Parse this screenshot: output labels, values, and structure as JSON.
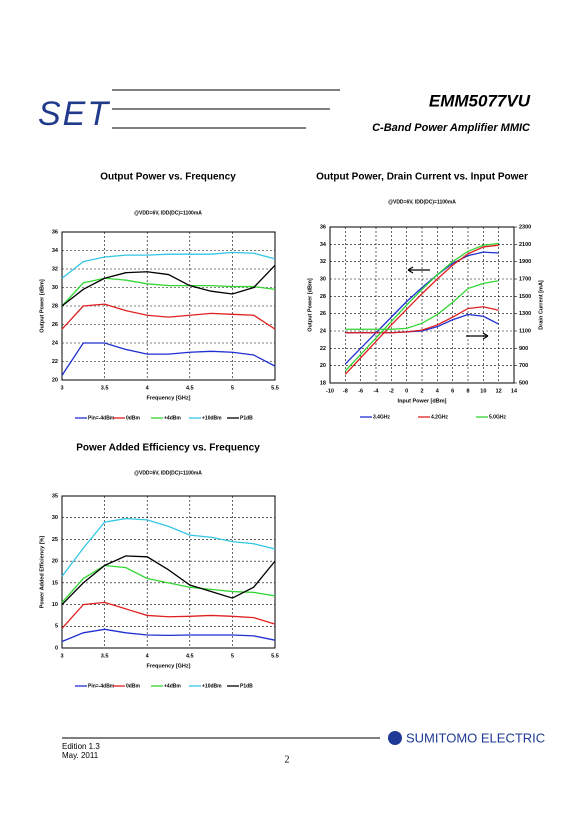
{
  "header": {
    "logo": "SET",
    "title": "EMM5077VU",
    "subtitle": "C-Band Power Amplifier MMIC"
  },
  "chart_data": [
    {
      "type": "line",
      "title": "Output Power vs. Frequency",
      "subtitle": "@VDD=6V, IDD(DC)=1100mA",
      "x_label": "Frequency [GHz]",
      "y_label": "Output Power [dBm]",
      "x": [
        3.0,
        3.25,
        3.5,
        3.75,
        4.0,
        4.25,
        4.5,
        4.75,
        5.0,
        5.25,
        5.5
      ],
      "xlim": [
        3,
        5.5
      ],
      "xticks": [
        3,
        3.5,
        4,
        4.5,
        5,
        5.5
      ],
      "ylim": [
        20,
        36
      ],
      "yticks": [
        20,
        22,
        24,
        26,
        28,
        30,
        32,
        34,
        36
      ],
      "grid": true,
      "series": [
        {
          "name": "Pin=-4dBm",
          "color": "#1f2fd0",
          "values": [
            20.5,
            24,
            24,
            23.3,
            22.8,
            22.8,
            23,
            23.1,
            23,
            22.7,
            21.5
          ]
        },
        {
          "name": "0dBm",
          "color": "#e02020",
          "values": [
            25.5,
            28,
            28.2,
            27.5,
            27,
            26.8,
            27,
            27.2,
            27.1,
            27,
            25.5
          ]
        },
        {
          "name": "+4dBm",
          "color": "#33d633",
          "values": [
            28,
            30.5,
            31,
            30.8,
            30.4,
            30.2,
            30.2,
            30.2,
            30.1,
            30.1,
            29.8
          ]
        },
        {
          "name": "+10dBm",
          "color": "#33c6e6",
          "values": [
            31,
            32.8,
            33.3,
            33.5,
            33.5,
            33.6,
            33.6,
            33.6,
            33.8,
            33.7,
            33.1
          ]
        },
        {
          "name": "P1dB",
          "color": "#000000",
          "values": [
            28,
            29.8,
            31,
            31.6,
            31.7,
            31.4,
            30.2,
            29.6,
            29.3,
            30,
            32.4
          ]
        }
      ]
    },
    {
      "type": "line",
      "title": "Output Power, Drain Current vs. Input Power",
      "subtitle": "@VDD=6V, IDD(DC)=1100mA",
      "x_label": "Input Power [dBm]",
      "y_label": "Output Power [dBm]",
      "y2_label": "Drain Current [mA]",
      "x": [
        -8,
        -6,
        -4,
        -2,
        0,
        2,
        4,
        6,
        8,
        10,
        12
      ],
      "xlim": [
        -10,
        14
      ],
      "xticks": [
        -10,
        -8,
        -6,
        -4,
        -2,
        0,
        2,
        4,
        6,
        8,
        10,
        12,
        14
      ],
      "ylim": [
        18,
        36
      ],
      "yticks": [
        18,
        20,
        22,
        24,
        26,
        28,
        30,
        32,
        34,
        36
      ],
      "y2lim": [
        500,
        2300
      ],
      "y2ticks": [
        500,
        700,
        900,
        1100,
        1300,
        1500,
        1700,
        1900,
        2100,
        2300
      ],
      "grid": true,
      "series": [
        {
          "name": "3.4GHz",
          "color": "#1f2fd0",
          "values": [
            20.2,
            22,
            23.8,
            25.6,
            27.4,
            29,
            30.5,
            31.8,
            32.7,
            33.1,
            33
          ],
          "y2_values": [
            1080,
            1080,
            1080,
            1080,
            1090,
            1100,
            1150,
            1230,
            1290,
            1270,
            1180
          ]
        },
        {
          "name": "4.2GHz",
          "color": "#e02020",
          "values": [
            19,
            20.9,
            22.8,
            24.7,
            26.5,
            28.3,
            30,
            31.6,
            32.9,
            33.7,
            33.9
          ],
          "y2_values": [
            1080,
            1080,
            1080,
            1080,
            1090,
            1110,
            1170,
            1260,
            1360,
            1380,
            1340
          ]
        },
        {
          "name": "5.0GHz",
          "color": "#33d633",
          "values": [
            19.4,
            21.3,
            23.2,
            25.1,
            27,
            28.8,
            30.5,
            32,
            33.2,
            33.9,
            34.1
          ],
          "y2_values": [
            1120,
            1120,
            1120,
            1120,
            1130,
            1190,
            1290,
            1430,
            1590,
            1650,
            1680
          ]
        }
      ]
    },
    {
      "type": "line",
      "title": "Power Added Efficiency vs. Frequency",
      "subtitle": "@VDD=6V, IDD(DC)=1100mA",
      "x_label": "Frequency [GHz]",
      "y_label": "Power Added Efficiency [%]",
      "x": [
        3.0,
        3.25,
        3.5,
        3.75,
        4.0,
        4.25,
        4.5,
        4.75,
        5.0,
        5.25,
        5.5
      ],
      "xlim": [
        3,
        5.5
      ],
      "xticks": [
        3,
        3.5,
        4,
        4.5,
        5,
        5.5
      ],
      "ylim": [
        0,
        35
      ],
      "yticks": [
        0,
        5,
        10,
        15,
        20,
        25,
        30,
        35
      ],
      "grid": true,
      "series": [
        {
          "name": "Pin=-4dBm",
          "color": "#1f2fd0",
          "values": [
            1.5,
            3.5,
            4.3,
            3.5,
            3,
            2.9,
            3,
            3,
            3,
            2.8,
            1.8
          ]
        },
        {
          "name": "0dBm",
          "color": "#e02020",
          "values": [
            4.5,
            10,
            10.5,
            9,
            7.5,
            7.2,
            7.3,
            7.5,
            7.3,
            7,
            5.5
          ]
        },
        {
          "name": "+4dBm",
          "color": "#33d633",
          "values": [
            10.5,
            16,
            19,
            18.5,
            16,
            15,
            14,
            13.5,
            13,
            12.8,
            12
          ]
        },
        {
          "name": "+10dBm",
          "color": "#33c6e6",
          "values": [
            16.5,
            23,
            29,
            29.8,
            29.5,
            28,
            26,
            25.5,
            24.5,
            24,
            22.8
          ]
        },
        {
          "name": "P1dB",
          "color": "#000000",
          "values": [
            10,
            15,
            19,
            21.2,
            21,
            18,
            14.5,
            13,
            11.5,
            14,
            20
          ]
        }
      ]
    }
  ],
  "footer": {
    "edition": "Edition 1.3",
    "date": "May. 2011",
    "page": "2",
    "company": "SUMITOMO ELECTRIC"
  }
}
